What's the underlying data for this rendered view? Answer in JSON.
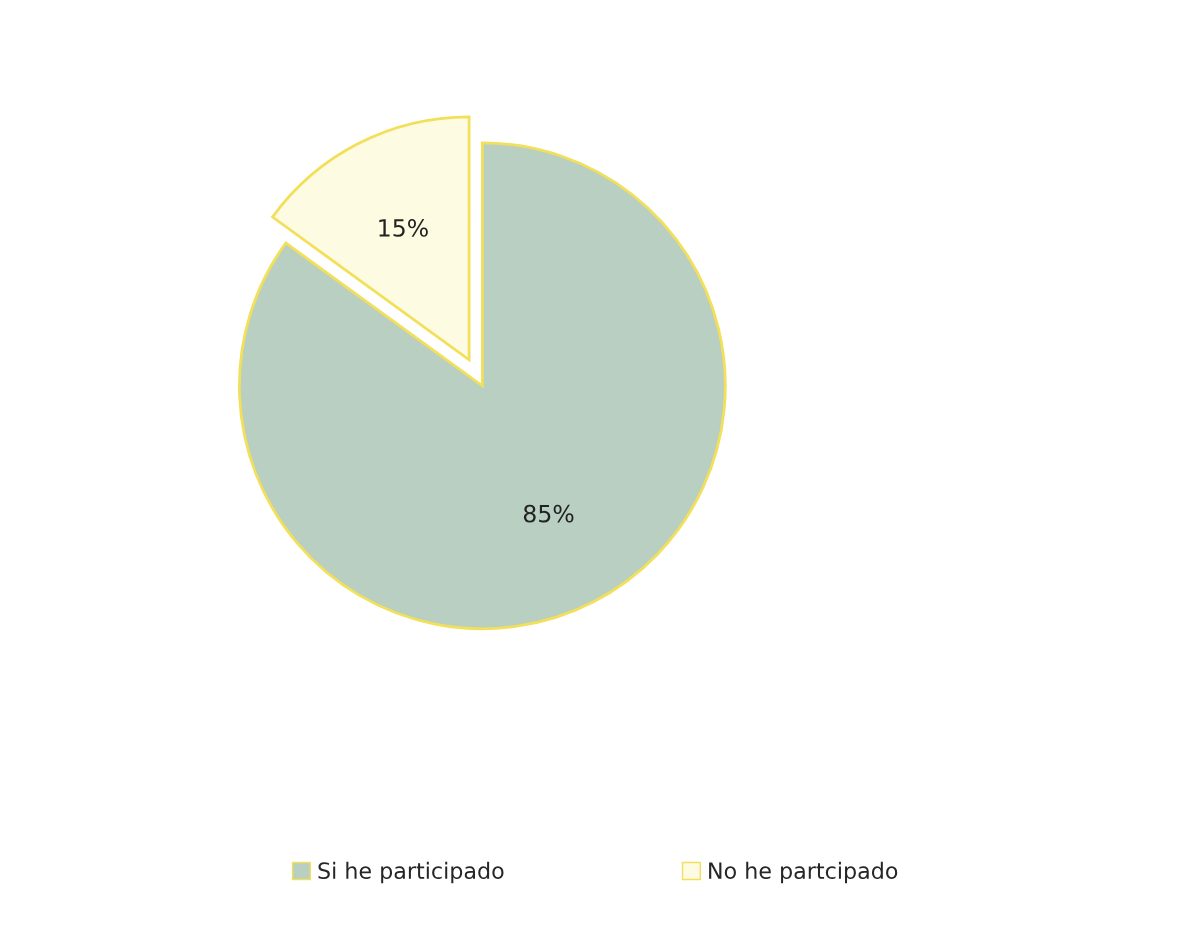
{
  "chart_data": {
    "type": "pie",
    "categories": [
      "Si he participado",
      "No he partcipado"
    ],
    "values": [
      85,
      15
    ],
    "colors": [
      "#b8cfc2",
      "#fdfbe2"
    ],
    "value_labels": [
      "85%",
      "15%"
    ],
    "legend": "bottom"
  }
}
